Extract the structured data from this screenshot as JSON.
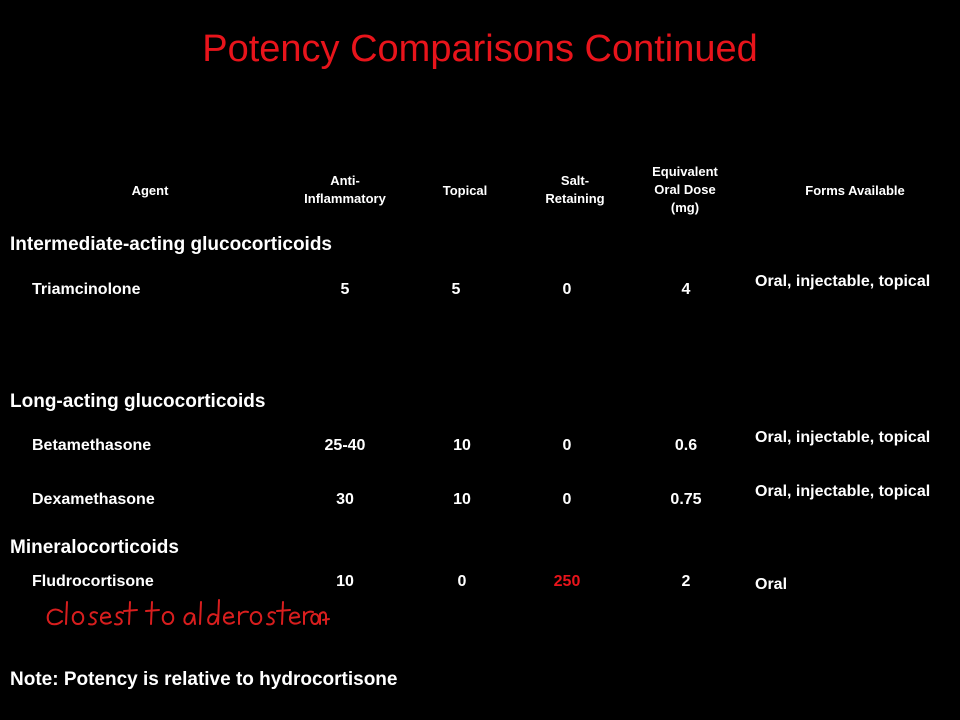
{
  "title": "Potency Comparisons Continued",
  "headers": {
    "agent": "Agent",
    "anti_inflammatory": "Anti-\nInflammatory",
    "topical": "Topical",
    "salt_retaining": "Salt-\nRetaining",
    "equivalent_dose": "Equivalent\nOral Dose\n(mg)",
    "forms": "Forms Available"
  },
  "sections": [
    {
      "heading": "Intermediate-acting glucocorticoids",
      "rows": [
        {
          "agent": "Triamcinolone",
          "anti": "5",
          "topical": "5",
          "salt": "0",
          "dose": "4",
          "forms": "Oral, injectable, topical"
        }
      ]
    },
    {
      "heading": "Long-acting glucocorticoids",
      "rows": [
        {
          "agent": "Betamethasone",
          "anti": "25-40",
          "topical": "10",
          "salt": "0",
          "dose": "0.6",
          "forms": "Oral, injectable, topical"
        },
        {
          "agent": "Dexamethasone",
          "anti": "30",
          "topical": "10",
          "salt": "0",
          "dose": "0.75",
          "forms": "Oral, injectable, topical"
        }
      ]
    },
    {
      "heading": "Mineralocorticoids",
      "rows": [
        {
          "agent": "Fludrocortisone",
          "anti": "10",
          "topical": "0",
          "salt": "250",
          "dose": "2",
          "forms": "Oral"
        }
      ]
    }
  ],
  "handwritten_note": "closest to aldosterone",
  "note": "Note: Potency is relative to hydrocortisone",
  "colors": {
    "title": "#e8141b",
    "highlight": "#e8141b",
    "ink": "#d81e1e",
    "text": "#ffffff",
    "background": "#000000"
  }
}
